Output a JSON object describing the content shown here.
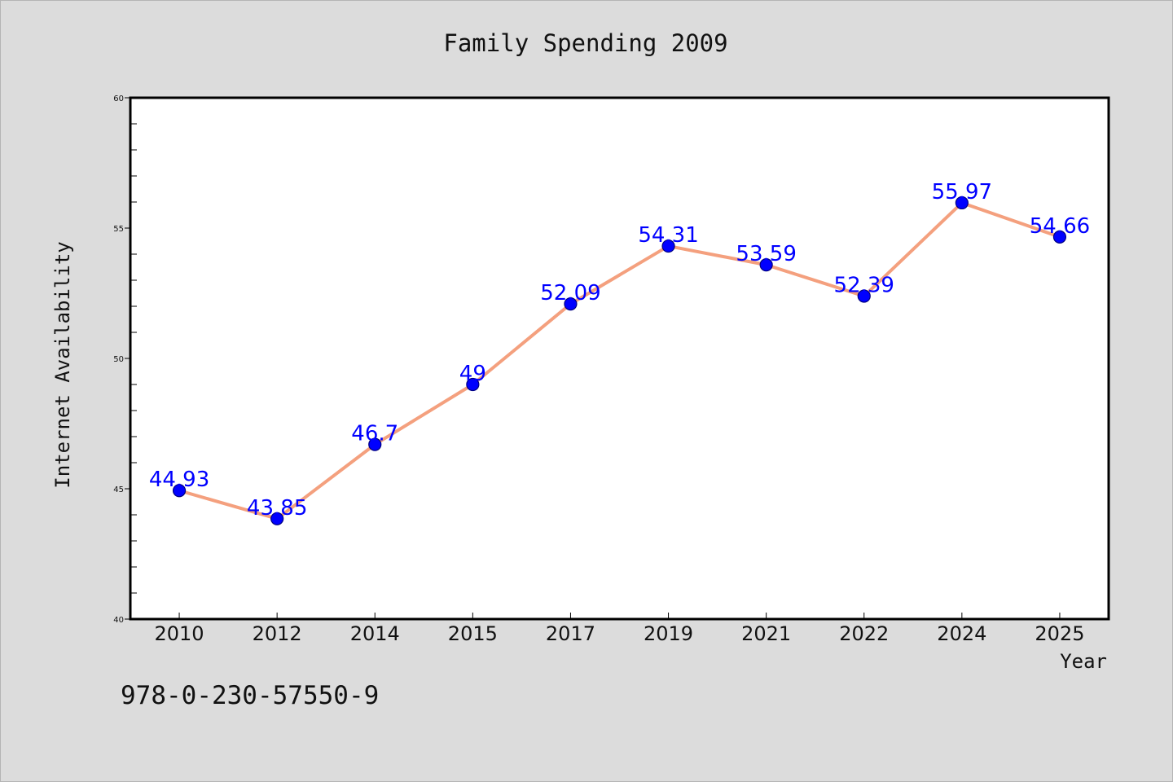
{
  "chart_data": {
    "type": "line",
    "title": "Family Spending 2009",
    "xlabel": "Year",
    "ylabel": "Internet Availability",
    "categories": [
      "2010",
      "2012",
      "2014",
      "2015",
      "2017",
      "2019",
      "2021",
      "2022",
      "2024",
      "2025"
    ],
    "series": [
      {
        "values": [
          44.93,
          43.85,
          46.7,
          49,
          52.09,
          54.31,
          53.59,
          52.39,
          55.97,
          54.66
        ],
        "labels": [
          "44.93",
          "43.85",
          "46.7",
          "49",
          "52.09",
          "54.31",
          "53.59",
          "52.39",
          "55.97",
          "54.66"
        ]
      }
    ],
    "ylim": [
      40,
      60
    ],
    "yticks": [
      "40",
      "45",
      "50",
      "55",
      "60"
    ],
    "grid": false,
    "colors": {
      "line": "#f4a07e",
      "marker": "#0000ff",
      "marker_edge": "#000080",
      "label": "#0000ff"
    }
  },
  "footer_text": "978-0-230-57550-9"
}
